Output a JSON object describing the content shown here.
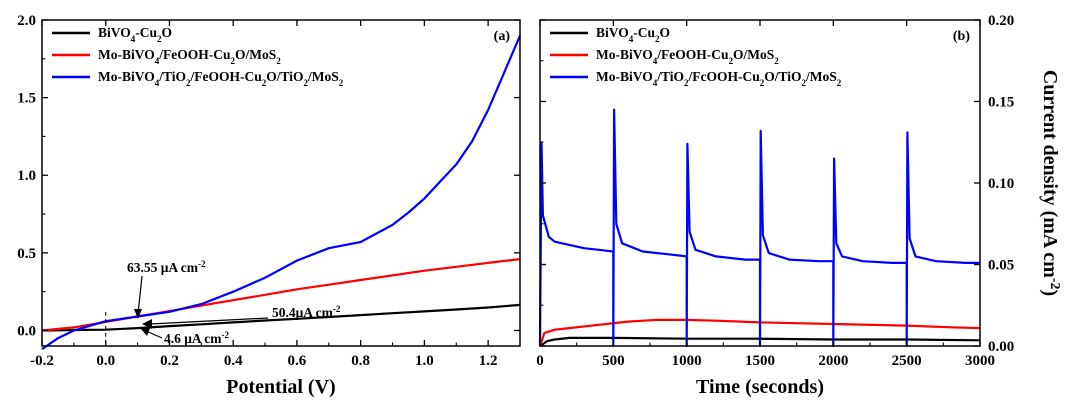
{
  "chart_data": [
    {
      "type": "line",
      "panel_label": "(a)",
      "xlabel": "Potential (V)",
      "ylabel": "Current density (mA cm⁻²)",
      "xlim": [
        -0.2,
        1.3
      ],
      "ylim": [
        -0.1,
        2.0
      ],
      "xticks": [
        -0.2,
        0.0,
        0.2,
        0.4,
        0.6,
        0.8,
        1.0,
        1.2
      ],
      "xtick_labels": [
        "-0.2",
        "0.0",
        "0.2",
        "0.4",
        "0.6",
        "0.8",
        "1.0",
        "1.2"
      ],
      "yticks": [
        0.0,
        0.5,
        1.0,
        1.5,
        2.0
      ],
      "ytick_labels": [
        "0.0",
        "0.5",
        "1.0",
        "1.5",
        "2.0"
      ],
      "legend_position": "top-left",
      "grid": false,
      "series": [
        {
          "name": "BiVO₄-Cu₂O",
          "color": "#000000",
          "x": [
            -0.2,
            -0.1,
            0.0,
            0.1,
            0.2,
            0.3,
            0.4,
            0.5,
            0.6,
            0.7,
            0.8,
            0.9,
            1.0,
            1.1,
            1.2,
            1.3
          ],
          "y": [
            0.0,
            0.003,
            0.005,
            0.015,
            0.028,
            0.04,
            0.052,
            0.064,
            0.075,
            0.087,
            0.099,
            0.111,
            0.123,
            0.135,
            0.148,
            0.165
          ]
        },
        {
          "name": "Mo-BiVO₄/FeOOH-Cu₂O/MoS₂",
          "color": "#ff0000",
          "x": [
            -0.2,
            -0.1,
            0.0,
            0.1,
            0.2,
            0.3,
            0.4,
            0.5,
            0.6,
            0.7,
            0.8,
            0.9,
            1.0,
            1.1,
            1.2,
            1.3
          ],
          "y": [
            0.0,
            0.02,
            0.055,
            0.09,
            0.125,
            0.16,
            0.195,
            0.23,
            0.265,
            0.295,
            0.325,
            0.355,
            0.385,
            0.41,
            0.435,
            0.46
          ]
        },
        {
          "name": "Mo-BiVO₄/TiO₂/FeOOH-Cu₂O/TiO₂/MoS₂",
          "color": "#0000ff",
          "x": [
            -0.2,
            -0.15,
            -0.1,
            -0.05,
            0.0,
            0.1,
            0.2,
            0.3,
            0.4,
            0.5,
            0.6,
            0.7,
            0.8,
            0.9,
            0.95,
            1.0,
            1.05,
            1.1,
            1.15,
            1.2,
            1.25,
            1.3
          ],
          "y": [
            -0.12,
            -0.05,
            0.0,
            0.03,
            0.06,
            0.09,
            0.12,
            0.17,
            0.25,
            0.34,
            0.45,
            0.53,
            0.57,
            0.68,
            0.76,
            0.85,
            0.96,
            1.07,
            1.22,
            1.42,
            1.66,
            1.9
          ]
        }
      ],
      "annotations": [
        {
          "text": "63.55 μA cm⁻²",
          "x": 0.0,
          "y": 0.063
        },
        {
          "text": "50.4μA cm⁻²",
          "x": 0.0,
          "y": 0.05
        },
        {
          "text": "4.6 μA cm⁻²",
          "x": 0.0,
          "y": 0.005
        }
      ]
    },
    {
      "type": "line",
      "panel_label": "(b)",
      "xlabel": "Time (seconds)",
      "ylabel": "Current density (mA cm⁻²)",
      "xlim": [
        0,
        3000
      ],
      "ylim": [
        0.0,
        0.2
      ],
      "xticks": [
        0,
        500,
        1000,
        1500,
        2000,
        2500,
        3000
      ],
      "xtick_labels": [
        "0",
        "500",
        "1000",
        "1500",
        "2000",
        "2500",
        "3000"
      ],
      "yticks": [
        0.0,
        0.05,
        0.1,
        0.15,
        0.2
      ],
      "ytick_labels": [
        "0.00",
        "0.05",
        "0.10",
        "0.15",
        "0.20"
      ],
      "yaxis_side": "right",
      "legend_position": "top-left",
      "grid": false,
      "series": [
        {
          "name": "BiVO₄-Cu₂O",
          "color": "#000000",
          "x": [
            0,
            50,
            100,
            200,
            500,
            1000,
            1500,
            2000,
            2500,
            3000
          ],
          "y": [
            0.0,
            0.003,
            0.004,
            0.005,
            0.005,
            0.0045,
            0.0045,
            0.004,
            0.004,
            0.0035
          ]
        },
        {
          "name": "Mo-BiVO₄/FeOOH-Cu₂O/MoS₂",
          "color": "#ff0000",
          "x": [
            0,
            30,
            100,
            200,
            400,
            600,
            800,
            1000,
            1200,
            1500,
            2000,
            2500,
            2800,
            3000
          ],
          "y": [
            0.0,
            0.008,
            0.01,
            0.011,
            0.013,
            0.015,
            0.016,
            0.016,
            0.0155,
            0.0145,
            0.0135,
            0.0125,
            0.0115,
            0.011
          ]
        },
        {
          "name": "Mo-BiVO₄/TiO₂/FcOOH-Cu₂O/TiO₂/MoS₂",
          "color": "#0000ff",
          "x": [
            0,
            10,
            20,
            60,
            100,
            200,
            300,
            400,
            500,
            500,
            505,
            520,
            560,
            700,
            900,
            1000,
            1000,
            1005,
            1020,
            1060,
            1200,
            1400,
            1500,
            1500,
            1505,
            1520,
            1560,
            1700,
            1900,
            2000,
            2000,
            2005,
            2020,
            2060,
            2200,
            2400,
            2500,
            2500,
            2505,
            2520,
            2560,
            2700,
            2900,
            3000
          ],
          "y": [
            0.0,
            0.125,
            0.08,
            0.067,
            0.064,
            0.062,
            0.06,
            0.059,
            0.058,
            0.0,
            0.145,
            0.075,
            0.063,
            0.058,
            0.056,
            0.055,
            0.0,
            0.124,
            0.07,
            0.059,
            0.055,
            0.053,
            0.053,
            0.0,
            0.132,
            0.068,
            0.057,
            0.053,
            0.052,
            0.052,
            0.0,
            0.115,
            0.063,
            0.055,
            0.052,
            0.051,
            0.051,
            0.0,
            0.131,
            0.066,
            0.055,
            0.052,
            0.051,
            0.051
          ]
        }
      ]
    }
  ]
}
